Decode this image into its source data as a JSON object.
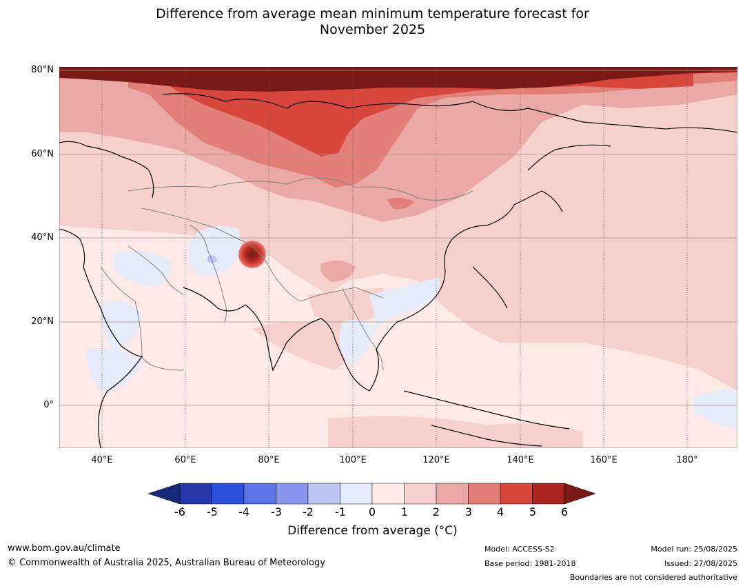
{
  "title": "Difference from average mean minimum temperature forecast for November 2025",
  "title_line1": "Difference from average mean minimum temperature forecast for",
  "title_line2": "November 2025",
  "lat_labels": [
    "80°N",
    "60°N",
    "40°N",
    "20°N",
    "0°"
  ],
  "lon_labels": [
    "40°E",
    "60°E",
    "80°E",
    "100°E",
    "120°E",
    "140°E",
    "160°E",
    "180°"
  ],
  "colorbar": {
    "ticks": [
      "-6",
      "-5",
      "-4",
      "-3",
      "-2",
      "-1",
      "0",
      "1",
      "2",
      "3",
      "4",
      "5",
      "6"
    ],
    "colors": [
      "#2537a8",
      "#2f4fde",
      "#5b73e6",
      "#8897ec",
      "#bcc5f3",
      "#e6ebfa",
      "#fde9e8",
      "#f5d0cd",
      "#eba9a5",
      "#e27f79",
      "#d7473e",
      "#a8261f"
    ],
    "under_color": "#172a7a",
    "over_color": "#7a1a16",
    "label": "Difference from average (°C)"
  },
  "footer": {
    "website": "www.bom.gov.au/climate",
    "copyright": "© Commonwealth of Australia 2025, Australian Bureau of Meteorology",
    "model": "Model: ACCESS-S2",
    "base_period": "Base period: 1981-2018",
    "model_run": "Model run: 25/08/2025",
    "issued": "Issued: 27/08/2025",
    "disclaimer": "Boundaries are not considered authoritative"
  }
}
